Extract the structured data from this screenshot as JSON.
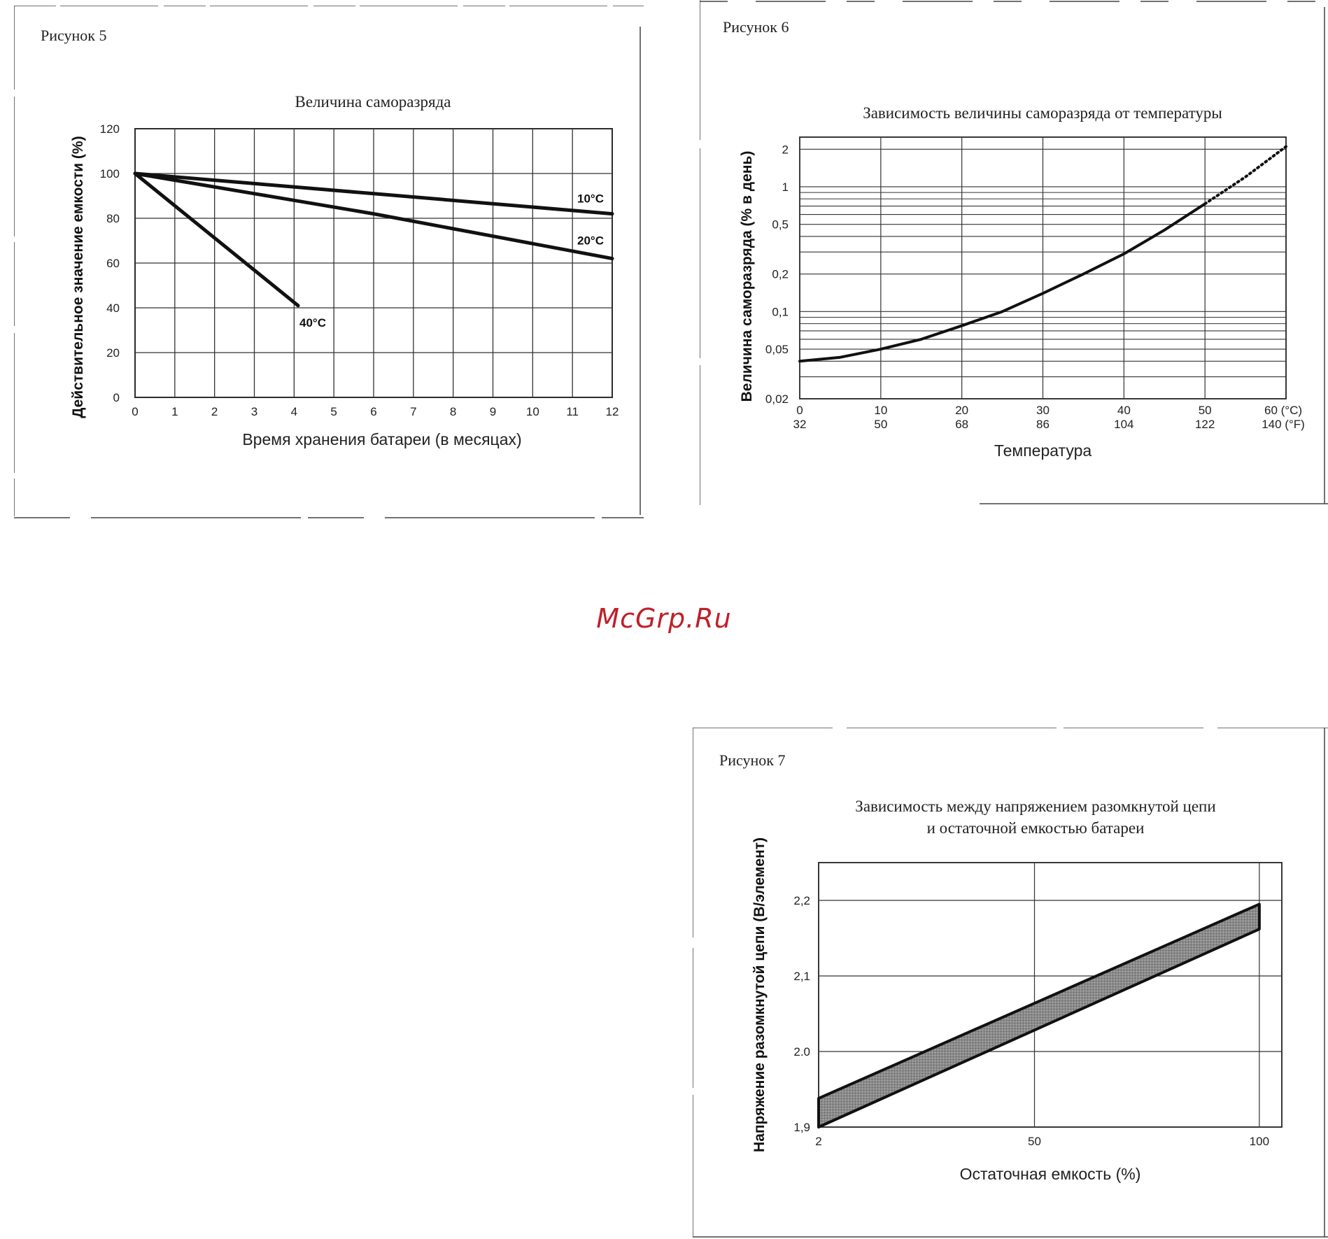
{
  "watermark": "McGrp.Ru",
  "figures": {
    "fig5": {
      "label": "Рисунок 5"
    },
    "fig6": {
      "label": "Рисунок 6"
    },
    "fig7": {
      "label": "Рисунок 7"
    }
  },
  "chart_data": [
    {
      "type": "line",
      "title": "Величина саморазряда",
      "xlabel": "Время хранения батареи (в месяцах)",
      "ylabel": "Действительное значение емкости (%)",
      "xlim": [
        0,
        12
      ],
      "ylim": [
        0,
        120
      ],
      "x_ticks": [
        "0",
        "1",
        "2",
        "3",
        "4",
        "5",
        "6",
        "7",
        "8",
        "9",
        "10",
        "11",
        "12"
      ],
      "y_ticks": [
        "0",
        "20",
        "40",
        "60",
        "80",
        "100",
        "120"
      ],
      "grid": true,
      "series": [
        {
          "name": "10°C",
          "x": [
            0,
            3,
            6,
            9,
            12
          ],
          "y": [
            100,
            95.5,
            91,
            86.5,
            82
          ]
        },
        {
          "name": "20°C",
          "x": [
            0,
            3,
            6,
            9,
            12
          ],
          "y": [
            100,
            91,
            82,
            72,
            62
          ]
        },
        {
          "name": "40°C",
          "x": [
            0,
            4.1
          ],
          "y": [
            100,
            41
          ]
        }
      ]
    },
    {
      "type": "line",
      "title": "Зависимость величины саморазряда от температуры",
      "xlabel": "Температура",
      "ylabel": "Величина саморазряда (% в день)",
      "xlim": [
        0,
        60
      ],
      "ylim": [
        0.02,
        2.5
      ],
      "y_scale": "log",
      "x_ticks_c": [
        "0",
        "10",
        "20",
        "30",
        "40",
        "50",
        "60 (°C)"
      ],
      "x_ticks_f": [
        "32",
        "50",
        "68",
        "86",
        "104",
        "122",
        "140 (°F)"
      ],
      "y_ticks": [
        "0,02",
        "0,05",
        "0,1",
        "0,2",
        "0,5",
        "1",
        "2"
      ],
      "grid": true,
      "series": [
        {
          "style": "solid",
          "x": [
            0,
            5,
            10,
            15,
            20,
            25,
            30,
            35,
            40,
            45,
            50
          ],
          "y": [
            0.04,
            0.043,
            0.05,
            0.06,
            0.077,
            0.1,
            0.14,
            0.2,
            0.29,
            0.45,
            0.73
          ]
        },
        {
          "style": "dotted",
          "x": [
            50,
            55,
            60
          ],
          "y": [
            0.73,
            1.2,
            2.1
          ]
        }
      ]
    },
    {
      "type": "area",
      "title": [
        "Зависимость между напряжением разомкнутой цепи",
        "и остаточной емкостью батареи"
      ],
      "xlabel": "Остаточная емкость (%)",
      "ylabel": "Напряжение разомкнутой цепи (В/элемент)",
      "xlim": [
        2,
        105
      ],
      "ylim": [
        1.9,
        2.25
      ],
      "x_ticks": [
        "2",
        "50",
        "100"
      ],
      "y_ticks": [
        "1,9",
        "2.0",
        "2,1",
        "2,2"
      ],
      "grid": true,
      "band": {
        "x": [
          2,
          100
        ],
        "upper": [
          1.938,
          2.195
        ],
        "lower": [
          1.9,
          2.162
        ]
      }
    }
  ]
}
